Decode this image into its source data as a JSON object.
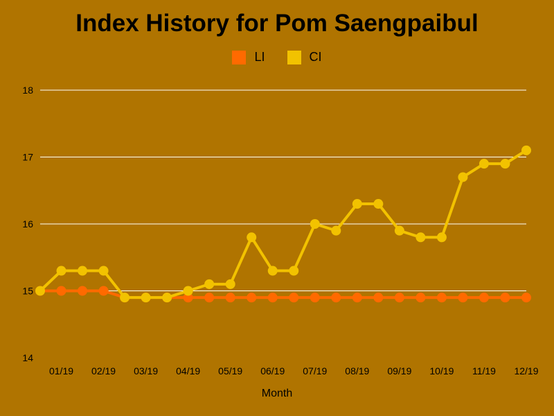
{
  "chart_data": {
    "type": "line",
    "title": "Index History for Pom Saengpaibul",
    "xlabel": "Month",
    "ylabel": "",
    "ylim": [
      14,
      18
    ],
    "yticks": [
      14,
      15,
      16,
      17,
      18
    ],
    "x_tick_labels": [
      "01/19",
      "02/19",
      "03/19",
      "04/19",
      "05/19",
      "06/19",
      "07/19",
      "08/19",
      "09/19",
      "10/19",
      "11/19",
      "12/19"
    ],
    "grid": true,
    "legend_position": "top-center",
    "series": [
      {
        "name": "LI",
        "color": "#ff6a00",
        "values": [
          15.0,
          15.0,
          15.0,
          15.0,
          14.9,
          14.9,
          14.9,
          14.9,
          14.9,
          14.9,
          14.9,
          14.9,
          14.9,
          14.9,
          14.9,
          14.9,
          14.9,
          14.9,
          14.9,
          14.9,
          14.9,
          14.9,
          14.9,
          14.9
        ]
      },
      {
        "name": "CI",
        "color": "#f2c200",
        "values": [
          15.0,
          15.3,
          15.3,
          15.3,
          14.9,
          14.9,
          14.9,
          15.0,
          15.1,
          15.1,
          15.8,
          15.3,
          15.3,
          16.0,
          15.9,
          16.3,
          16.3,
          15.9,
          15.8,
          15.8,
          16.7,
          16.9,
          16.9,
          17.1
        ]
      }
    ]
  }
}
